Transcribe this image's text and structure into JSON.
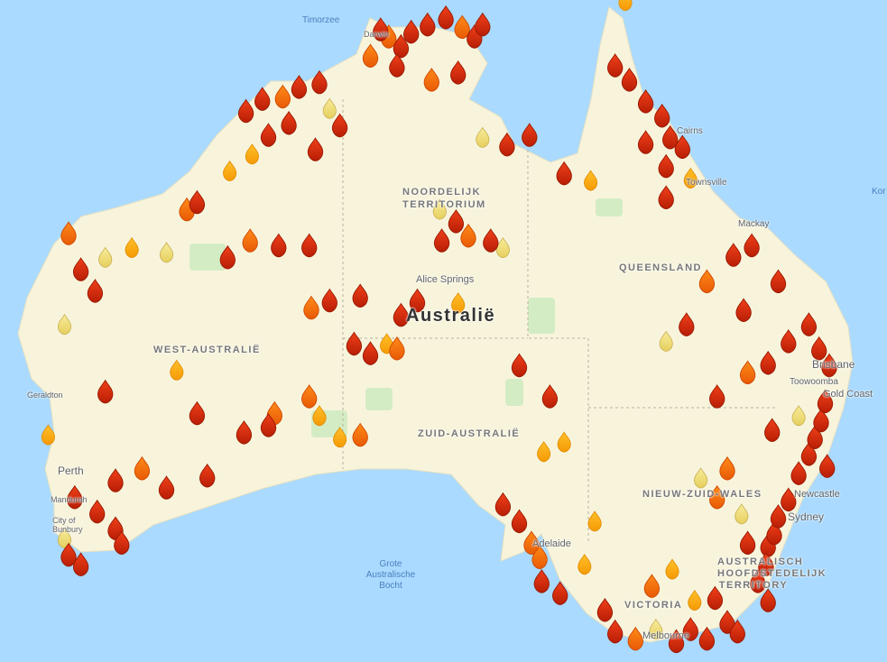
{
  "map": {
    "country_label": "Australië",
    "colors": {
      "ocean": "#aadaff",
      "land": "#f8f4dc",
      "park": "#d4ecc4",
      "fire_red": "#d42a08",
      "fire_orange": "#f26a0a",
      "fire_amber": "#ffa60d",
      "fire_yellow": "#efdc7a"
    },
    "state_labels": [
      {
        "id": "nt",
        "text": "NOORDELIJK TERRITORIUM"
      },
      {
        "id": "qld",
        "text": "QUEENSLAND"
      },
      {
        "id": "wa",
        "text": "WEST-AUSTRALIË"
      },
      {
        "id": "sa",
        "text": "ZUID-AUSTRALIË"
      },
      {
        "id": "nsw",
        "text": "NIEUW-ZUID-WALES"
      },
      {
        "id": "act",
        "text": "AUSTRALISCH HOOFDSTEDELIJK TERRITORY"
      },
      {
        "id": "vic",
        "text": "VICTORIA"
      }
    ],
    "city_labels": [
      {
        "id": "darwin",
        "text": "Darwin"
      },
      {
        "id": "alice",
        "text": "Alice Springs"
      },
      {
        "id": "cairns",
        "text": "Cairns"
      },
      {
        "id": "townsville",
        "text": "Townsville"
      },
      {
        "id": "mackay",
        "text": "Mackay"
      },
      {
        "id": "brisbane",
        "text": "Brisbane"
      },
      {
        "id": "toowoomba",
        "text": "Toowoomba"
      },
      {
        "id": "goldcoast",
        "text": "Gold Coast"
      },
      {
        "id": "newcastle",
        "text": "Newcastle"
      },
      {
        "id": "sydney",
        "text": "Sydney"
      },
      {
        "id": "melbourne",
        "text": "Melbourne"
      },
      {
        "id": "adelaide",
        "text": "Adelaide"
      },
      {
        "id": "geraldton",
        "text": "Geraldton"
      },
      {
        "id": "perth",
        "text": "Perth"
      },
      {
        "id": "mandurah",
        "text": "Mandurah"
      },
      {
        "id": "bunbury",
        "text": "City of Bunbury"
      }
    ],
    "water_labels": [
      {
        "id": "timorzee",
        "text": "Timorzee"
      },
      {
        "id": "bocht",
        "text": "Grote Australische Bocht"
      },
      {
        "id": "koraalzee",
        "text": "Kor"
      }
    ],
    "fire_legend_levels": {
      "1": "yellow",
      "2": "amber",
      "3": "orange",
      "4": "red"
    },
    "fires": [
      [
        131.0,
        -12.5,
        4
      ],
      [
        131.4,
        -12.8,
        3
      ],
      [
        132.0,
        -13.2,
        4
      ],
      [
        132.5,
        -12.6,
        4
      ],
      [
        133.3,
        -12.3,
        4
      ],
      [
        134.2,
        -12.0,
        4
      ],
      [
        135.0,
        -12.4,
        3
      ],
      [
        135.6,
        -12.8,
        4
      ],
      [
        136.0,
        -12.3,
        4
      ],
      [
        131.8,
        -14.0,
        4
      ],
      [
        130.5,
        -13.6,
        3
      ],
      [
        133.5,
        -14.6,
        3
      ],
      [
        134.8,
        -14.3,
        4
      ],
      [
        124.4,
        -15.9,
        4
      ],
      [
        125.2,
        -15.4,
        4
      ],
      [
        126.2,
        -15.3,
        3
      ],
      [
        127.0,
        -14.9,
        4
      ],
      [
        128.0,
        -14.7,
        4
      ],
      [
        128.5,
        -15.8,
        1
      ],
      [
        126.5,
        -16.4,
        4
      ],
      [
        125.5,
        -16.9,
        4
      ],
      [
        124.7,
        -17.7,
        2
      ],
      [
        123.6,
        -18.4,
        2
      ],
      [
        127.8,
        -17.5,
        4
      ],
      [
        129.0,
        -16.5,
        4
      ],
      [
        137.2,
        -17.3,
        4
      ],
      [
        138.3,
        -16.9,
        4
      ],
      [
        136.0,
        -17.0,
        1
      ],
      [
        140.0,
        -18.5,
        4
      ],
      [
        141.3,
        -18.8,
        2
      ],
      [
        143.0,
        -11.3,
        2
      ],
      [
        142.5,
        -14.0,
        4
      ],
      [
        143.2,
        -14.6,
        4
      ],
      [
        144.0,
        -15.5,
        4
      ],
      [
        144.8,
        -16.1,
        4
      ],
      [
        145.2,
        -17.0,
        4
      ],
      [
        145.8,
        -17.4,
        4
      ],
      [
        145.0,
        -18.2,
        4
      ],
      [
        144.0,
        -17.2,
        4
      ],
      [
        145.0,
        -19.5,
        4
      ],
      [
        146.2,
        -18.7,
        2
      ],
      [
        115.7,
        -21.0,
        3
      ],
      [
        116.3,
        -22.5,
        4
      ],
      [
        117.0,
        -23.4,
        4
      ],
      [
        117.5,
        -22.0,
        1
      ],
      [
        118.8,
        -21.6,
        2
      ],
      [
        120.5,
        -21.8,
        1
      ],
      [
        121.5,
        -20.0,
        3
      ],
      [
        122.0,
        -19.7,
        4
      ],
      [
        123.5,
        -22.0,
        4
      ],
      [
        124.6,
        -21.3,
        3
      ],
      [
        126.0,
        -21.5,
        4
      ],
      [
        127.5,
        -21.5,
        4
      ],
      [
        115.5,
        -24.8,
        1
      ],
      [
        117.5,
        -27.6,
        4
      ],
      [
        127.6,
        -24.1,
        3
      ],
      [
        128.5,
        -23.8,
        4
      ],
      [
        130.0,
        -23.6,
        4
      ],
      [
        129.7,
        -25.6,
        4
      ],
      [
        130.5,
        -26.0,
        4
      ],
      [
        131.3,
        -25.6,
        2
      ],
      [
        132.0,
        -24.4,
        4
      ],
      [
        132.8,
        -23.8,
        4
      ],
      [
        134.8,
        -23.9,
        2
      ],
      [
        131.8,
        -25.8,
        3
      ],
      [
        134.0,
        -21.3,
        4
      ],
      [
        134.7,
        -20.5,
        4
      ],
      [
        135.3,
        -21.1,
        3
      ],
      [
        133.9,
        -20.0,
        1
      ],
      [
        136.4,
        -21.3,
        4
      ],
      [
        137.0,
        -21.6,
        1
      ],
      [
        121.0,
        -26.7,
        2
      ],
      [
        122.0,
        -28.5,
        4
      ],
      [
        124.3,
        -29.3,
        4
      ],
      [
        125.5,
        -29.0,
        4
      ],
      [
        125.8,
        -28.5,
        3
      ],
      [
        127.5,
        -27.8,
        3
      ],
      [
        128.0,
        -28.6,
        2
      ],
      [
        129.0,
        -29.5,
        2
      ],
      [
        130.0,
        -29.4,
        3
      ],
      [
        122.5,
        -31.1,
        4
      ],
      [
        120.5,
        -31.6,
        4
      ],
      [
        119.3,
        -30.8,
        3
      ],
      [
        118.0,
        -31.3,
        4
      ],
      [
        116.0,
        -32.0,
        4
      ],
      [
        117.1,
        -32.6,
        4
      ],
      [
        118.0,
        -33.3,
        4
      ],
      [
        118.3,
        -33.9,
        4
      ],
      [
        115.5,
        -33.7,
        1
      ],
      [
        115.7,
        -34.4,
        4
      ],
      [
        116.3,
        -34.8,
        4
      ],
      [
        114.7,
        -29.4,
        2
      ],
      [
        137.8,
        -26.5,
        4
      ],
      [
        139.3,
        -27.8,
        4
      ],
      [
        140.0,
        -29.7,
        2
      ],
      [
        139.0,
        -30.1,
        2
      ],
      [
        137.0,
        -32.3,
        4
      ],
      [
        137.8,
        -33.0,
        4
      ],
      [
        138.4,
        -33.9,
        3
      ],
      [
        138.8,
        -34.5,
        3
      ],
      [
        138.9,
        -35.5,
        4
      ],
      [
        139.8,
        -36.0,
        4
      ],
      [
        141.0,
        -34.8,
        2
      ],
      [
        141.5,
        -33.0,
        2
      ],
      [
        142.0,
        -36.7,
        4
      ],
      [
        142.5,
        -37.6,
        4
      ],
      [
        143.5,
        -37.9,
        3
      ],
      [
        144.5,
        -37.5,
        1
      ],
      [
        145.5,
        -38.0,
        4
      ],
      [
        146.2,
        -37.5,
        4
      ],
      [
        147.0,
        -37.9,
        4
      ],
      [
        148.0,
        -37.2,
        4
      ],
      [
        148.5,
        -37.6,
        4
      ],
      [
        144.3,
        -35.7,
        3
      ],
      [
        145.3,
        -35.0,
        2
      ],
      [
        146.4,
        -36.3,
        2
      ],
      [
        147.4,
        -36.2,
        4
      ],
      [
        149.0,
        -33.9,
        4
      ],
      [
        150.0,
        -34.0,
        4
      ],
      [
        150.3,
        -33.5,
        4
      ],
      [
        150.5,
        -32.8,
        4
      ],
      [
        151.0,
        -32.1,
        4
      ],
      [
        151.5,
        -31.0,
        4
      ],
      [
        152.0,
        -30.2,
        4
      ],
      [
        152.3,
        -29.5,
        4
      ],
      [
        152.6,
        -28.8,
        4
      ],
      [
        152.8,
        -28.0,
        4
      ],
      [
        151.5,
        -28.6,
        1
      ],
      [
        150.2,
        -29.2,
        4
      ],
      [
        149.9,
        -34.8,
        4
      ],
      [
        149.5,
        -35.5,
        4
      ],
      [
        150.0,
        -36.3,
        4
      ],
      [
        148.0,
        -30.8,
        3
      ],
      [
        146.7,
        -31.2,
        1
      ],
      [
        147.5,
        -32.0,
        3
      ],
      [
        148.7,
        -32.7,
        1
      ],
      [
        149.0,
        -26.8,
        3
      ],
      [
        150.0,
        -26.4,
        4
      ],
      [
        151.0,
        -25.5,
        4
      ],
      [
        152.0,
        -24.8,
        4
      ],
      [
        150.5,
        -23.0,
        4
      ],
      [
        149.2,
        -21.5,
        4
      ],
      [
        148.3,
        -21.9,
        4
      ],
      [
        147.0,
        -23.0,
        3
      ],
      [
        146.0,
        -24.8,
        4
      ],
      [
        145.0,
        -25.5,
        1
      ],
      [
        147.5,
        -27.8,
        4
      ],
      [
        148.8,
        -24.2,
        4
      ],
      [
        152.9,
        -30.7,
        4
      ],
      [
        153.0,
        -26.5,
        4
      ],
      [
        152.5,
        -25.8,
        4
      ]
    ]
  }
}
